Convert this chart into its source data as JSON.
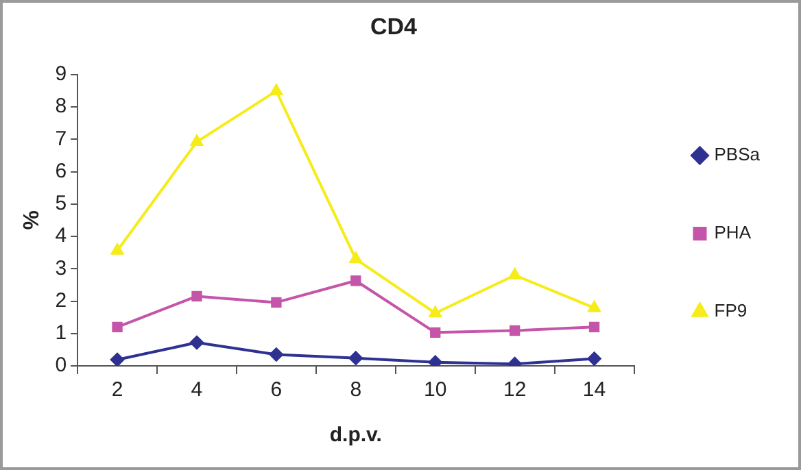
{
  "chart_data": {
    "type": "line",
    "title": "CD4",
    "xlabel": "d.p.v.",
    "ylabel": "%",
    "categories": [
      "2",
      "4",
      "6",
      "8",
      "10",
      "12",
      "14"
    ],
    "ylim": [
      0,
      9
    ],
    "yticks": [
      0,
      1,
      2,
      3,
      4,
      5,
      6,
      7,
      8,
      9
    ],
    "grid": false,
    "legend": "right",
    "line_style": "solid",
    "series": [
      {
        "name": "PBSa",
        "color": "#2e3192",
        "marker": "diamond",
        "values": [
          0.19,
          0.72,
          0.35,
          0.24,
          0.11,
          0.06,
          0.22
        ]
      },
      {
        "name": "PHA",
        "color": "#c455a8",
        "marker": "square",
        "values": [
          1.2,
          2.15,
          1.96,
          2.63,
          1.03,
          1.09,
          1.2
        ]
      },
      {
        "name": "FP9",
        "color": "#f5ec1a",
        "marker": "triangle",
        "values": [
          3.56,
          6.92,
          8.49,
          3.3,
          1.63,
          2.8,
          1.79
        ]
      }
    ]
  }
}
